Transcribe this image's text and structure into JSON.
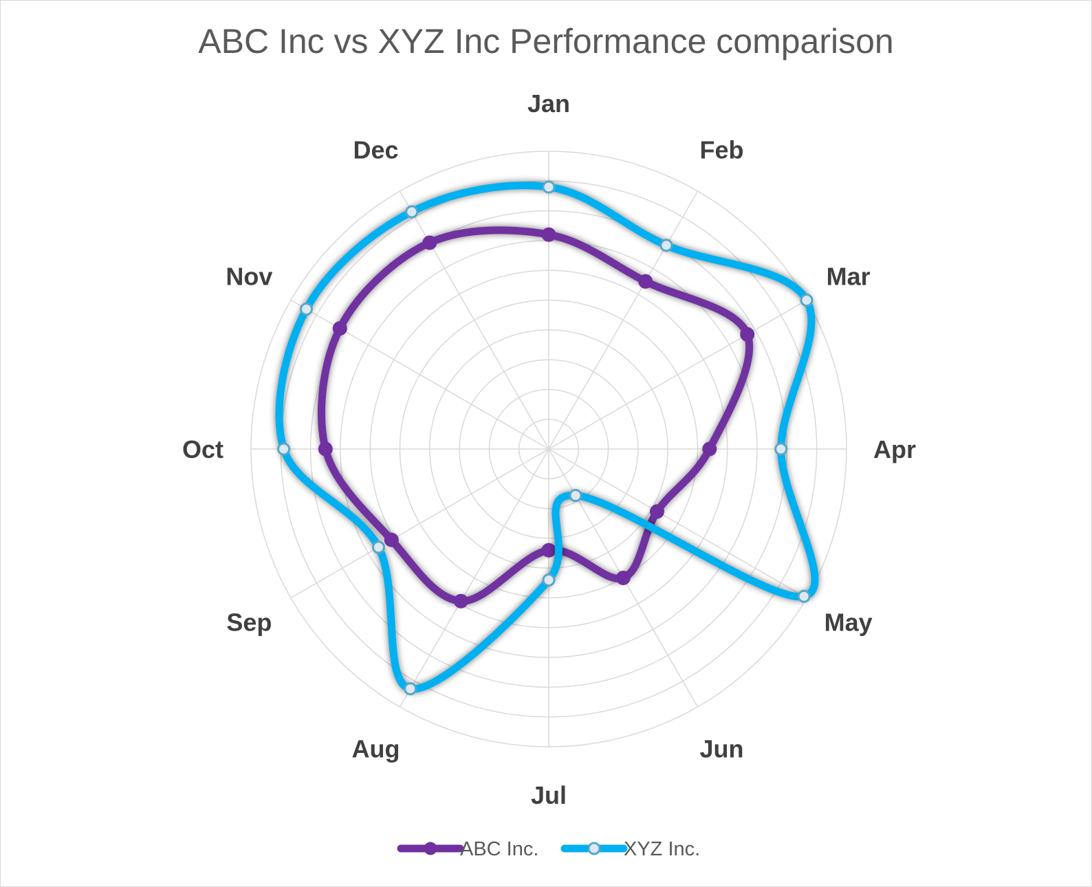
{
  "chart_data": {
    "type": "radar",
    "title": "ABC Inc vs XYZ Inc Performance comparison",
    "categories": [
      "Jan",
      "Feb",
      "Mar",
      "Apr",
      "May",
      "Jun",
      "Jul",
      "Aug",
      "Sep",
      "Oct",
      "Nov",
      "Dec"
    ],
    "scale": {
      "min": 0,
      "max": 10,
      "rings": 10,
      "show_tick_labels": false
    },
    "grid": true,
    "smooth_lines": true,
    "legend_position": "bottom",
    "series": [
      {
        "name": "ABC Inc.",
        "color": "#7030A0",
        "marker": "filled-circle",
        "values": [
          7.2,
          6.5,
          7.7,
          5.4,
          4.2,
          5.0,
          3.4,
          5.9,
          6.1,
          7.5,
          8.1,
          8.0
        ]
      },
      {
        "name": "XYZ Inc.",
        "color": "#00B0F0",
        "marker": "open-circle",
        "values": [
          8.8,
          7.9,
          10.0,
          7.8,
          9.9,
          1.8,
          4.4,
          9.3,
          6.6,
          8.9,
          9.4,
          9.2
        ]
      }
    ]
  }
}
